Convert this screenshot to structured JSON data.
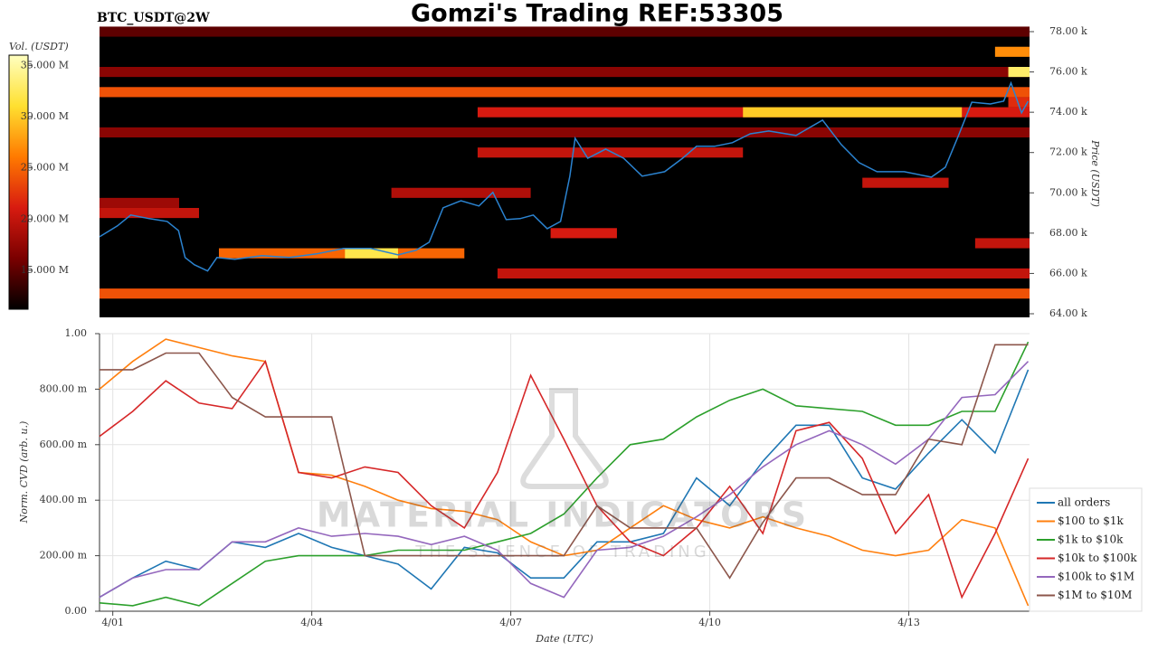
{
  "chart_data": [
    {
      "type": "heatmap",
      "title": "Gomzi's Trading REF:53305",
      "subtitle": "BTC_USDT@2W",
      "ylabel": "Price (USDT)",
      "colorbar_label": "Vol. (USDT)",
      "xlim": [
        -0.2,
        13.82
      ],
      "ylim": [
        63820,
        78090
      ],
      "yticks": [
        {
          "value": 64000,
          "label": "64.00 k"
        },
        {
          "value": 66000,
          "label": "66.00 k"
        },
        {
          "value": 68000,
          "label": "68.00 k"
        },
        {
          "value": 70000,
          "label": "70.00 k"
        },
        {
          "value": 72000,
          "label": "72.00 k"
        },
        {
          "value": 74000,
          "label": "74.00 k"
        },
        {
          "value": 76000,
          "label": "76.00 k"
        },
        {
          "value": 78000,
          "label": "78.00 k"
        }
      ],
      "clim": [
        11200000,
        36000000
      ],
      "cticks": [
        {
          "value": 15000000,
          "label": "15.000 M"
        },
        {
          "value": 20000000,
          "label": "20.000 M"
        },
        {
          "value": 25000000,
          "label": "25.000 M"
        },
        {
          "value": 30000000,
          "label": "30.000 M"
        },
        {
          "value": 35000000,
          "label": "35.000 M"
        }
      ],
      "colormap": [
        "#000000",
        "#7a0000",
        "#d81b10",
        "#ff7a00",
        "#ffe030",
        "#ffffc0"
      ],
      "bands": [
        {
          "price": 78000,
          "from": -0.2,
          "to": 13.82,
          "volume": 15000000
        },
        {
          "price": 76000,
          "from": -0.2,
          "to": 13.82,
          "volume": 17000000
        },
        {
          "price": 76000,
          "from": 13.5,
          "to": 13.82,
          "volume": 33000000
        },
        {
          "price": 77000,
          "from": 13.3,
          "to": 13.82,
          "volume": 27000000
        },
        {
          "price": 75000,
          "from": -0.2,
          "to": 13.82,
          "volume": 24000000
        },
        {
          "price": 74500,
          "from": 13.5,
          "to": 13.82,
          "volume": 22000000
        },
        {
          "price": 74000,
          "from": 5.5,
          "to": 13.82,
          "volume": 21000000
        },
        {
          "price": 74000,
          "from": 9.5,
          "to": 12.8,
          "volume": 30000000
        },
        {
          "price": 73000,
          "from": -0.2,
          "to": 13.82,
          "volume": 17000000
        },
        {
          "price": 72000,
          "from": 5.5,
          "to": 9.5,
          "volume": 20000000
        },
        {
          "price": 70500,
          "from": 11.3,
          "to": 12.6,
          "volume": 20000000
        },
        {
          "price": 70000,
          "from": 4.2,
          "to": 6.3,
          "volume": 19000000
        },
        {
          "price": 69500,
          "from": -0.2,
          "to": 1,
          "volume": 18000000
        },
        {
          "price": 69000,
          "from": -0.2,
          "to": 1.3,
          "volume": 20000000
        },
        {
          "price": 68000,
          "from": 6.6,
          "to": 7.6,
          "volume": 21000000
        },
        {
          "price": 67500,
          "from": 13,
          "to": 13.82,
          "volume": 20000000
        },
        {
          "price": 67000,
          "from": 1.6,
          "to": 5.3,
          "volume": 25000000
        },
        {
          "price": 67000,
          "from": 3.5,
          "to": 4.3,
          "volume": 32000000
        },
        {
          "price": 66000,
          "from": 5.8,
          "to": 13.82,
          "volume": 20000000
        },
        {
          "price": 65000,
          "from": -0.2,
          "to": 13.82,
          "volume": 24000000
        }
      ],
      "line_color": "#2b83d0",
      "x": [
        -0.2,
        0.07,
        0.27,
        0.55,
        0.82,
        0.99,
        1.09,
        1.23,
        1.43,
        1.57,
        1.84,
        2.25,
        2.66,
        3.07,
        3.48,
        3.89,
        4.3,
        4.57,
        4.77,
        4.98,
        5.25,
        5.52,
        5.73,
        5.93,
        6.14,
        6.34,
        6.55,
        6.75,
        6.89,
        6.97,
        7.16,
        7.43,
        7.7,
        7.98,
        8.32,
        8.59,
        8.8,
        9.07,
        9.34,
        9.61,
        9.89,
        10.3,
        10.7,
        10.98,
        11.25,
        11.52,
        11.93,
        12.34,
        12.55,
        12.75,
        12.95,
        13.23,
        13.43,
        13.54,
        13.7,
        13.8
      ],
      "values": [
        67820,
        68360,
        68900,
        68720,
        68580,
        68130,
        66790,
        66430,
        66120,
        66790,
        66700,
        66880,
        66790,
        66970,
        67240,
        67240,
        66920,
        67150,
        67550,
        69260,
        69610,
        69350,
        70020,
        68670,
        68720,
        68900,
        68220,
        68580,
        70830,
        72710,
        71720,
        72170,
        71720,
        70830,
        71050,
        71720,
        72310,
        72310,
        72490,
        72930,
        73070,
        72850,
        73610,
        72400,
        71500,
        71050,
        71050,
        70780,
        71270,
        72850,
        74500,
        74410,
        74550,
        75450,
        73970,
        74550
      ]
    },
    {
      "type": "line",
      "xlabel": "Date (UTC)",
      "ylabel": "Norm. CVD (arb. u.)",
      "annotations": [
        "MATERIAL INDICATORS",
        "THE SCIENCE OF TRADING"
      ],
      "xlim": [
        -0.2,
        13.82
      ],
      "ylim": [
        0,
        1
      ],
      "xticks": [
        {
          "value": 0,
          "label": "4/01"
        },
        {
          "value": 3,
          "label": "4/04"
        },
        {
          "value": 6,
          "label": "4/07"
        },
        {
          "value": 9,
          "label": "4/10"
        },
        {
          "value": 12,
          "label": "4/13"
        }
      ],
      "yticks": [
        {
          "value": 0,
          "label": "0.00"
        },
        {
          "value": 0.2,
          "label": "200.00 m"
        },
        {
          "value": 0.4,
          "label": "400.00 m"
        },
        {
          "value": 0.6,
          "label": "600.00 m"
        },
        {
          "value": 0.8,
          "label": "800.00 m"
        },
        {
          "value": 1,
          "label": "1.00"
        }
      ],
      "grid": true,
      "legend": "lower right",
      "x": [
        -0.2,
        0.3,
        0.8,
        1.3,
        1.8,
        2.3,
        2.8,
        3.3,
        3.8,
        4.3,
        4.8,
        5.3,
        5.8,
        6.3,
        6.8,
        7.3,
        7.8,
        8.3,
        8.8,
        9.3,
        9.8,
        10.3,
        10.8,
        11.3,
        11.8,
        12.3,
        12.8,
        13.3,
        13.8
      ],
      "series": [
        {
          "name": "all orders",
          "color": "#1f77b4",
          "values": [
            0.05,
            0.12,
            0.18,
            0.15,
            0.25,
            0.23,
            0.28,
            0.23,
            0.2,
            0.17,
            0.08,
            0.23,
            0.21,
            0.12,
            0.12,
            0.25,
            0.25,
            0.28,
            0.48,
            0.38,
            0.54,
            0.67,
            0.67,
            0.48,
            0.44,
            0.57,
            0.69,
            0.57,
            0.87
          ]
        },
        {
          "name": "$100 to $1k",
          "color": "#ff7f0e",
          "values": [
            0.8,
            0.9,
            0.98,
            0.95,
            0.92,
            0.9,
            0.5,
            0.49,
            0.45,
            0.4,
            0.37,
            0.36,
            0.33,
            0.25,
            0.2,
            0.22,
            0.3,
            0.38,
            0.33,
            0.3,
            0.34,
            0.3,
            0.27,
            0.22,
            0.2,
            0.22,
            0.33,
            0.3,
            0.02
          ]
        },
        {
          "name": "$1k to $10k",
          "color": "#2ca02c",
          "values": [
            0.03,
            0.02,
            0.05,
            0.02,
            0.1,
            0.18,
            0.2,
            0.2,
            0.2,
            0.22,
            0.22,
            0.22,
            0.25,
            0.28,
            0.35,
            0.48,
            0.6,
            0.62,
            0.7,
            0.76,
            0.8,
            0.74,
            0.73,
            0.72,
            0.67,
            0.67,
            0.72,
            0.72,
            0.97
          ]
        },
        {
          "name": "$10k to $100k",
          "color": "#d62728",
          "values": [
            0.63,
            0.72,
            0.83,
            0.75,
            0.73,
            0.9,
            0.5,
            0.48,
            0.52,
            0.5,
            0.38,
            0.3,
            0.5,
            0.85,
            0.62,
            0.38,
            0.25,
            0.2,
            0.3,
            0.45,
            0.28,
            0.65,
            0.68,
            0.55,
            0.28,
            0.42,
            0.05,
            0.28,
            0.55
          ]
        },
        {
          "name": "$100k to $1M",
          "color": "#9467bd",
          "values": [
            0.05,
            0.12,
            0.15,
            0.15,
            0.25,
            0.25,
            0.3,
            0.27,
            0.28,
            0.27,
            0.24,
            0.27,
            0.22,
            0.1,
            0.05,
            0.22,
            0.23,
            0.27,
            0.34,
            0.42,
            0.52,
            0.6,
            0.65,
            0.6,
            0.53,
            0.62,
            0.77,
            0.78,
            0.9
          ]
        },
        {
          "name": "$1M to $10M",
          "color": "#8c564b",
          "values": [
            0.87,
            0.87,
            0.93,
            0.93,
            0.77,
            0.7,
            0.7,
            0.7,
            0.2,
            0.2,
            0.2,
            0.2,
            0.2,
            0.2,
            0.2,
            0.38,
            0.3,
            0.3,
            0.3,
            0.12,
            0.32,
            0.48,
            0.48,
            0.42,
            0.42,
            0.62,
            0.6,
            0.96,
            0.96
          ]
        }
      ]
    }
  ]
}
